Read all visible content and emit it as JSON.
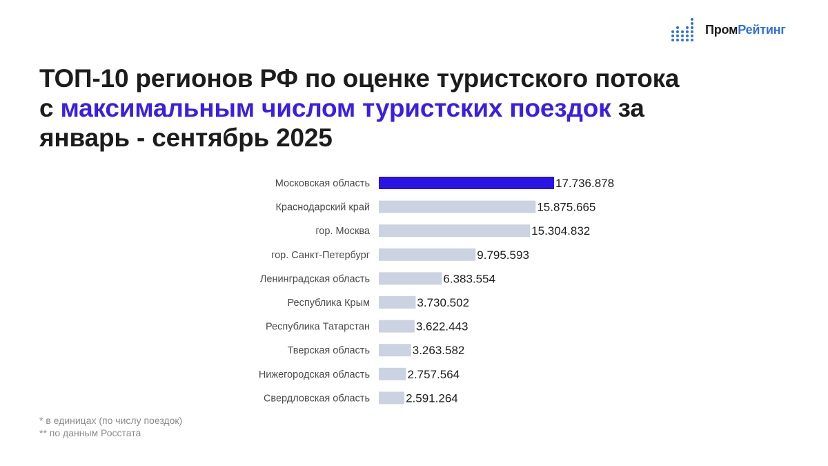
{
  "logo": {
    "part1": "Пром",
    "part2": "Рейтинг"
  },
  "title": {
    "line1": "ТОП-10 регионов РФ по оценке туристского потока",
    "line2_pre": "с ",
    "line2_highlight": "максимальным числом туристских поездок",
    "line2_post": " за",
    "line3": "январь - сентябрь 2025"
  },
  "notes": {
    "note1": "* в единицах (по числу поездок)",
    "note2": "** по данным Росстата"
  },
  "colors": {
    "accent_bar": "#2a13e6",
    "bar": "#cbd2e2",
    "title_highlight": "#3a1ee8",
    "logo_blue": "#2e6fe6"
  },
  "chart_data": {
    "type": "bar",
    "orientation": "horizontal",
    "title": "",
    "xlabel": "",
    "ylabel": "",
    "grid": false,
    "categories": [
      "Московская область",
      "Краснодарский край",
      "гор. Москва",
      "гор. Санкт-Петербург",
      "Ленинградская область",
      "Республика Крым",
      "Республика Татарстан",
      "Тверская область",
      "Нижегородская область",
      "Свердловская область"
    ],
    "values": [
      17736878,
      15875665,
      15304832,
      9795593,
      6383554,
      3730502,
      3622443,
      3263582,
      2757564,
      2591264
    ],
    "value_labels": [
      "17.736.878",
      "15.875.665",
      "15.304.832",
      "9.795.593",
      "6.383.554",
      "3.730.502",
      "3.622.443",
      "3.263.582",
      "2.757.564",
      "2.591.264"
    ],
    "highlighted_index": 0
  }
}
